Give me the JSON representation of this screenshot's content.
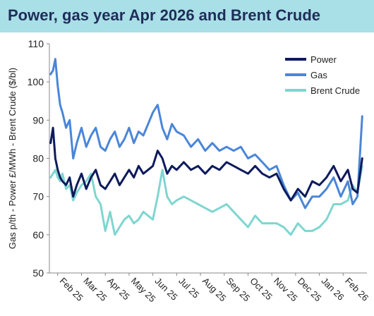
{
  "header": {
    "title": "Power, gas year Apr 2026 and Brent Crude"
  },
  "chart_data": {
    "type": "line",
    "title": "Power, gas year Apr 2026 and Brent Crude",
    "ylabel": "Gas p/th - Power £/MWh - Brent Crude ($/bl)",
    "xlabel": "",
    "ylim": [
      50,
      110
    ],
    "yticks": [
      50,
      60,
      70,
      80,
      90,
      100,
      110
    ],
    "xlim": [
      0,
      13.0
    ],
    "x_tick_labels": [
      "Feb 25",
      "Mar 25",
      "Apr 25",
      "May 25",
      "Jun 25",
      "Jul 25",
      "Aug 25",
      "Sep 25",
      "Oct 25",
      "Nov 25",
      "Dec 25",
      "Jan 26",
      "Feb 26"
    ],
    "x_tick_positions": [
      0,
      1,
      2,
      3,
      4,
      5,
      6,
      7,
      8,
      9,
      10,
      11,
      12
    ],
    "grid": false,
    "legend": "top-right",
    "series": [
      {
        "name": "Power",
        "color": "#0d1a5c",
        "x": [
          -0.3,
          -0.2,
          -0.1,
          0,
          0.1,
          0.2,
          0.35,
          0.5,
          0.65,
          0.8,
          1.0,
          1.2,
          1.4,
          1.6,
          1.8,
          2.0,
          2.2,
          2.4,
          2.6,
          2.8,
          3.0,
          3.2,
          3.4,
          3.6,
          3.8,
          4.0,
          4.2,
          4.4,
          4.6,
          4.8,
          5.0,
          5.3,
          5.6,
          5.9,
          6.2,
          6.5,
          6.8,
          7.1,
          7.4,
          7.7,
          8.0,
          8.3,
          8.6,
          8.9,
          9.2,
          9.5,
          9.8,
          10.1,
          10.4,
          10.7,
          11.0,
          11.3,
          11.6,
          11.9,
          12.2,
          12.4,
          12.6,
          12.8
        ],
        "values": [
          84,
          88,
          80,
          77,
          75,
          74,
          73,
          75,
          70,
          73,
          76,
          72,
          75,
          77,
          73,
          72,
          74,
          76,
          73,
          75,
          77,
          75,
          78,
          76,
          77,
          78,
          82,
          80,
          76,
          78,
          77,
          79,
          77,
          78,
          76,
          78,
          77,
          79,
          78,
          77,
          76,
          78,
          76,
          75,
          76,
          72,
          69,
          72,
          70,
          74,
          73,
          75,
          78,
          74,
          77,
          72,
          71,
          80
        ]
      },
      {
        "name": "Gas",
        "color": "#4a86d8",
        "x": [
          -0.3,
          -0.2,
          -0.1,
          0,
          0.1,
          0.2,
          0.35,
          0.5,
          0.65,
          0.8,
          1.0,
          1.2,
          1.4,
          1.6,
          1.8,
          2.0,
          2.2,
          2.4,
          2.6,
          2.8,
          3.0,
          3.2,
          3.4,
          3.6,
          3.8,
          4.0,
          4.2,
          4.4,
          4.6,
          4.8,
          5.0,
          5.3,
          5.6,
          5.9,
          6.2,
          6.5,
          6.8,
          7.1,
          7.4,
          7.7,
          8.0,
          8.3,
          8.6,
          8.9,
          9.2,
          9.5,
          9.8,
          10.1,
          10.4,
          10.7,
          11.0,
          11.3,
          11.6,
          11.9,
          12.2,
          12.4,
          12.6,
          12.8
        ],
        "values": [
          102,
          103,
          106,
          99,
          94,
          92,
          88,
          90,
          80,
          84,
          88,
          83,
          86,
          88,
          83,
          82,
          85,
          87,
          83,
          85,
          88,
          84,
          87,
          86,
          89,
          92,
          94,
          88,
          85,
          89,
          87,
          86,
          83,
          85,
          82,
          84,
          82,
          83,
          82,
          83,
          80,
          81,
          79,
          77,
          78,
          73,
          69,
          71,
          67,
          70,
          70,
          72,
          75,
          70,
          74,
          68,
          70,
          91
        ]
      },
      {
        "name": "Brent Crude",
        "color": "#7fd6d0",
        "x": [
          -0.3,
          -0.2,
          -0.1,
          0,
          0.1,
          0.2,
          0.35,
          0.5,
          0.65,
          0.8,
          1.0,
          1.2,
          1.4,
          1.6,
          1.8,
          2.0,
          2.2,
          2.4,
          2.6,
          2.8,
          3.0,
          3.2,
          3.4,
          3.6,
          3.8,
          4.0,
          4.2,
          4.4,
          4.6,
          4.8,
          5.0,
          5.3,
          5.6,
          5.9,
          6.2,
          6.5,
          6.8,
          7.1,
          7.4,
          7.7,
          8.0,
          8.3,
          8.6,
          8.9,
          9.2,
          9.5,
          9.8,
          10.1,
          10.4,
          10.7,
          11.0,
          11.3,
          11.6,
          11.9,
          12.2,
          12.4,
          12.6,
          12.8
        ],
        "values": [
          75,
          76,
          77,
          75,
          74,
          76,
          72,
          73,
          69,
          71,
          73,
          74,
          76,
          70,
          68,
          61,
          66,
          60,
          62,
          64,
          65,
          63,
          64,
          66,
          65,
          64,
          70,
          77,
          70,
          68,
          69,
          70,
          69,
          68,
          67,
          66,
          67,
          68,
          66,
          64,
          62,
          65,
          63,
          63,
          63,
          62,
          60,
          63,
          61,
          61,
          62,
          64,
          68,
          68,
          69,
          73,
          71,
          78
        ]
      }
    ]
  }
}
